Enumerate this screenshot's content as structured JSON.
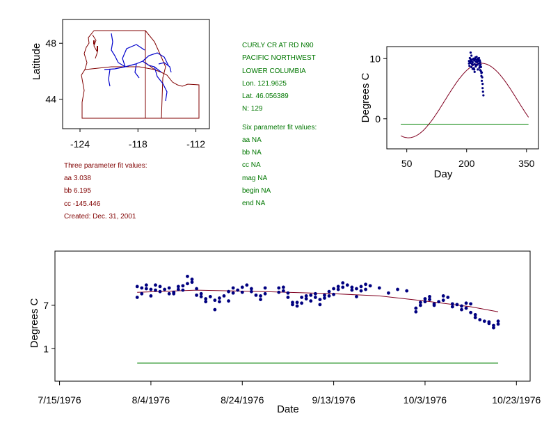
{
  "colors": {
    "axis": "#000000",
    "data_point": "#000080",
    "fit_curve": "#800020",
    "baseline": "#008000",
    "map_border": "#800000",
    "rivers": "#0000cc",
    "green_text": "#007700",
    "red_text": "#800000"
  },
  "station_info": {
    "name": "CURLY CR AT RD N90",
    "region": "PACIFIC NORTHWEST",
    "subregion": "LOWER COLUMBIA",
    "lon": "Lon. 121.9625",
    "lat": "Lat. 46.056389",
    "n": "N: 129"
  },
  "six_param": {
    "header": "Six parameter fit values:",
    "aa": "aa NA",
    "bb": "bb NA",
    "cc": "cc NA",
    "mag": "mag NA",
    "begin": "begin NA",
    "end": "end NA"
  },
  "three_param": {
    "header": "Three parameter fit values:",
    "aa": "aa 3.038",
    "bb": "bb 6.195",
    "cc": "cc -145.446",
    "created": "Created:   Dec. 31, 2001"
  },
  "chart_data": [
    {
      "id": "map",
      "type": "map",
      "ylabel": "Latitude",
      "xlabel": "",
      "x_ticks": [
        "-124",
        "-118",
        "-112"
      ],
      "x_tick_values": [
        -124,
        -118,
        -112
      ],
      "y_ticks": [
        "48",
        "44"
      ],
      "y_tick_values": [
        48,
        44
      ],
      "xlim": [
        -125.8,
        -110.6
      ],
      "ylim": [
        41.9,
        49.7
      ],
      "site_marker": {
        "lon": -121.9625,
        "lat": 46.056389,
        "symbol": "triangle"
      }
    },
    {
      "id": "seasonal",
      "type": "scatter",
      "title": "",
      "xlabel": "Day",
      "ylabel": "Degrees C",
      "x_ticks": [
        "50",
        "200",
        "350"
      ],
      "x_tick_values": [
        50,
        200,
        350
      ],
      "y_ticks": [
        "10",
        "0"
      ],
      "y_tick_values": [
        10,
        0
      ],
      "xlim": [
        0,
        380
      ],
      "ylim": [
        -5,
        12
      ],
      "fit": {
        "aa": 3.038,
        "bb": 6.195,
        "cc": -145.446,
        "x_range": [
          35,
          355
        ]
      },
      "baseline": {
        "y": -0.9,
        "x_range": [
          35,
          355
        ]
      },
      "points": [
        [
          206,
          9.6
        ],
        [
          206,
          9.2
        ],
        [
          207,
          8.8
        ],
        [
          208,
          10.1
        ],
        [
          208,
          9.5
        ],
        [
          209,
          9.3
        ],
        [
          210,
          9.9
        ],
        [
          210,
          11.0
        ],
        [
          211,
          9.6
        ],
        [
          212,
          10.5
        ],
        [
          213,
          9.2
        ],
        [
          214,
          9.8
        ],
        [
          215,
          9.4
        ],
        [
          215,
          8.3
        ],
        [
          216,
          9.0
        ],
        [
          217,
          10.0
        ],
        [
          218,
          8.4
        ],
        [
          219,
          9.7
        ],
        [
          220,
          9.1
        ],
        [
          220,
          7.8
        ],
        [
          221,
          9.9
        ],
        [
          222,
          10.2
        ],
        [
          223,
          9.5
        ],
        [
          223,
          8.7
        ],
        [
          224,
          8.9
        ],
        [
          225,
          10.3
        ],
        [
          225,
          9.8
        ],
        [
          226,
          9.4
        ],
        [
          227,
          9.0
        ],
        [
          228,
          8.2
        ],
        [
          229,
          9.6
        ],
        [
          230,
          9.9
        ],
        [
          231,
          9.2
        ],
        [
          232,
          8.5
        ],
        [
          233,
          8.8
        ],
        [
          234,
          9.4
        ],
        [
          235,
          9.0
        ],
        [
          236,
          8.6
        ],
        [
          237,
          7.1
        ],
        [
          237,
          7.6
        ],
        [
          238,
          6.3
        ],
        [
          239,
          6.9
        ],
        [
          240,
          5.8
        ],
        [
          240,
          5.1
        ],
        [
          241,
          4.5
        ],
        [
          242,
          3.9
        ],
        [
          238,
          7.7
        ],
        [
          236,
          7.9
        ],
        [
          234,
          8.1
        ],
        [
          219,
          8.2
        ],
        [
          212,
          8.6
        ],
        [
          214,
          9.0
        ],
        [
          228,
          10.0
        ],
        [
          231,
          10.1
        ],
        [
          233,
          9.7
        ]
      ]
    },
    {
      "id": "timeseries",
      "type": "scatter",
      "title": "",
      "xlabel": "Date",
      "ylabel": "Degrees C",
      "x_ticks": [
        "7/15/1976",
        "8/4/1976",
        "8/24/1976",
        "9/13/1976",
        "10/3/1976",
        "10/23/1976"
      ],
      "x_tick_values": [
        0,
        20,
        40,
        60,
        80,
        100
      ],
      "x_note": "x values are days since 7/15/1976",
      "y_ticks": [
        "7",
        "1"
      ],
      "y_tick_values": [
        7,
        1
      ],
      "xlim": [
        -1,
        103
      ],
      "ylim": [
        -3.5,
        14.5
      ],
      "fit_curve": [
        [
          17,
          8.8
        ],
        [
          30,
          9.1
        ],
        [
          45,
          8.9
        ],
        [
          60,
          8.6
        ],
        [
          70,
          8.3
        ],
        [
          80,
          7.6
        ],
        [
          90,
          6.8
        ],
        [
          96,
          6.1
        ]
      ],
      "baseline": {
        "y": -1.0,
        "x_range": [
          17,
          96
        ]
      },
      "points": [
        [
          17,
          8.1
        ],
        [
          17,
          9.6
        ],
        [
          18,
          8.6
        ],
        [
          18,
          9.4
        ],
        [
          19,
          9.3
        ],
        [
          19,
          9.8
        ],
        [
          20,
          8.3
        ],
        [
          20,
          9.2
        ],
        [
          21,
          9.8
        ],
        [
          21,
          9.1
        ],
        [
          22,
          8.9
        ],
        [
          22,
          9.6
        ],
        [
          23,
          9.2
        ],
        [
          24,
          8.6
        ],
        [
          24,
          9.4
        ],
        [
          25,
          8.8
        ],
        [
          25,
          8.6
        ],
        [
          26,
          9.2
        ],
        [
          26,
          9.6
        ],
        [
          27,
          9.7
        ],
        [
          27,
          9.1
        ],
        [
          28,
          10.0
        ],
        [
          28,
          11.0
        ],
        [
          29,
          10.2
        ],
        [
          29,
          10.6
        ],
        [
          30,
          9.3
        ],
        [
          30,
          8.4
        ],
        [
          31,
          8.6
        ],
        [
          31,
          8.2
        ],
        [
          32,
          7.9
        ],
        [
          32,
          7.5
        ],
        [
          33,
          8.2
        ],
        [
          34,
          6.4
        ],
        [
          34,
          7.7
        ],
        [
          35,
          8.0
        ],
        [
          35,
          7.5
        ],
        [
          36,
          8.3
        ],
        [
          37,
          8.9
        ],
        [
          37,
          7.6
        ],
        [
          38,
          8.7
        ],
        [
          38,
          9.4
        ],
        [
          39,
          9.1
        ],
        [
          40,
          8.8
        ],
        [
          40,
          9.5
        ],
        [
          41,
          9.8
        ],
        [
          42,
          8.9
        ],
        [
          42,
          9.3
        ],
        [
          43,
          8.4
        ],
        [
          44,
          7.8
        ],
        [
          44,
          8.3
        ],
        [
          45,
          8.6
        ],
        [
          45,
          9.4
        ],
        [
          48,
          9.4
        ],
        [
          48,
          8.8
        ],
        [
          49,
          9.0
        ],
        [
          49,
          9.5
        ],
        [
          50,
          8.7
        ],
        [
          50,
          8.1
        ],
        [
          51,
          7.4
        ],
        [
          51,
          7.1
        ],
        [
          52,
          6.9
        ],
        [
          52,
          7.4
        ],
        [
          53,
          8.1
        ],
        [
          53,
          7.3
        ],
        [
          54,
          8.3
        ],
        [
          54,
          7.9
        ],
        [
          55,
          8.4
        ],
        [
          55,
          7.6
        ],
        [
          56,
          8.1
        ],
        [
          56,
          8.6
        ],
        [
          57,
          7.8
        ],
        [
          57,
          7.1
        ],
        [
          58,
          8.0
        ],
        [
          58,
          8.4
        ],
        [
          59,
          8.9
        ],
        [
          59,
          8.3
        ],
        [
          60,
          8.5
        ],
        [
          60,
          9.3
        ],
        [
          61,
          9.2
        ],
        [
          61,
          9.6
        ],
        [
          62,
          10.1
        ],
        [
          62,
          9.5
        ],
        [
          63,
          9.8
        ],
        [
          64,
          9.1
        ],
        [
          64,
          9.5
        ],
        [
          65,
          9.3
        ],
        [
          65,
          8.2
        ],
        [
          66,
          9.0
        ],
        [
          66,
          9.6
        ],
        [
          67,
          9.2
        ],
        [
          67,
          9.9
        ],
        [
          68,
          9.7
        ],
        [
          78,
          6.6
        ],
        [
          78,
          6.1
        ],
        [
          79,
          7.0
        ],
        [
          79,
          7.4
        ],
        [
          80,
          7.9
        ],
        [
          80,
          7.5
        ],
        [
          81,
          8.2
        ],
        [
          81,
          7.8
        ],
        [
          82,
          7.2
        ],
        [
          82,
          7.0
        ],
        [
          83,
          7.5
        ],
        [
          84,
          7.7
        ],
        [
          84,
          8.3
        ],
        [
          85,
          8.1
        ],
        [
          86,
          7.2
        ],
        [
          86,
          6.8
        ],
        [
          87,
          7.1
        ],
        [
          88,
          6.9
        ],
        [
          88,
          6.4
        ],
        [
          89,
          6.6
        ],
        [
          90,
          6.0
        ],
        [
          91,
          5.7
        ],
        [
          91,
          5.3
        ],
        [
          92,
          5.0
        ],
        [
          93,
          4.8
        ],
        [
          94,
          4.5
        ],
        [
          94,
          4.7
        ],
        [
          95,
          4.2
        ],
        [
          95,
          3.9
        ],
        [
          96,
          4.8
        ],
        [
          96,
          4.4
        ],
        [
          90,
          7.2
        ],
        [
          89,
          7.3
        ],
        [
          76,
          9.0
        ],
        [
          74,
          9.2
        ],
        [
          72,
          8.7
        ],
        [
          70,
          9.4
        ]
      ]
    }
  ]
}
